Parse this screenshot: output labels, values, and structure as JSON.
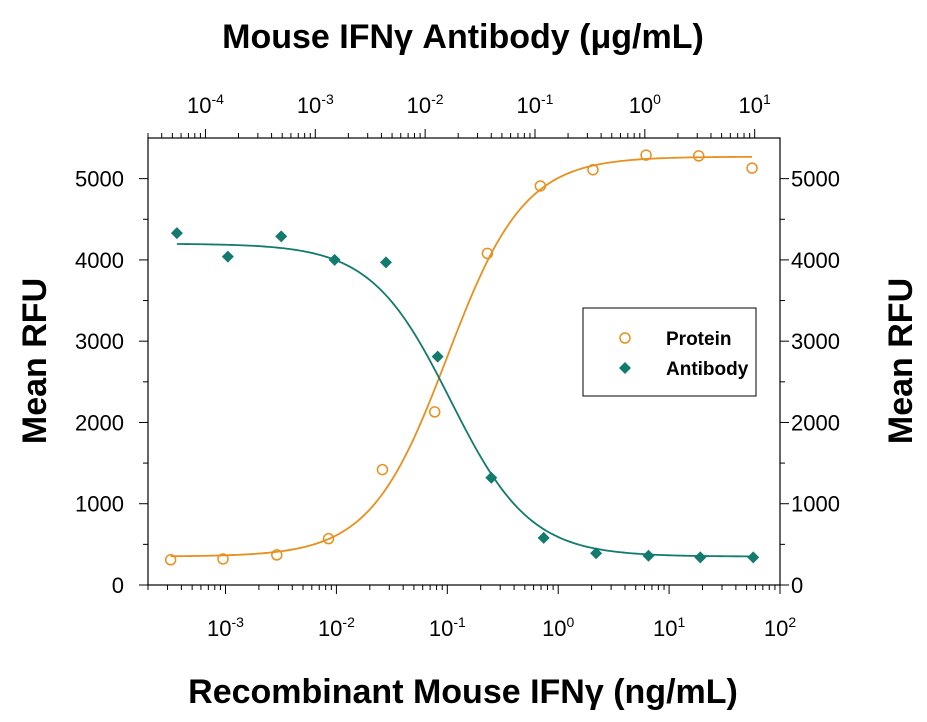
{
  "chart_data": {
    "type": "scatter",
    "title": "",
    "xlabel": "Recombinant Mouse IFNγ (ng/mL)",
    "x2label": "Mouse IFNγ Antibody (μg/mL)",
    "ylabel": "Mean RFU",
    "y2label": "Mean RFU",
    "xscale": "log",
    "x2scale": "log",
    "xlim": [
      0.0002,
      100
    ],
    "x2lim": [
      3e-05,
      17
    ],
    "ylim": [
      0,
      5500
    ],
    "x_ticks": [
      {
        "base": "10",
        "exp": "-3",
        "value": 0.001
      },
      {
        "base": "10",
        "exp": "-2",
        "value": 0.01
      },
      {
        "base": "10",
        "exp": "-1",
        "value": 0.1
      },
      {
        "base": "10",
        "exp": "0",
        "value": 1
      },
      {
        "base": "10",
        "exp": "1",
        "value": 10
      },
      {
        "base": "10",
        "exp": "2",
        "value": 100
      }
    ],
    "x2_ticks": [
      {
        "base": "10",
        "exp": "-4",
        "value": 0.0001
      },
      {
        "base": "10",
        "exp": "-3",
        "value": 0.001
      },
      {
        "base": "10",
        "exp": "-2",
        "value": 0.01
      },
      {
        "base": "10",
        "exp": "-1",
        "value": 0.1
      },
      {
        "base": "10",
        "exp": "0",
        "value": 1
      },
      {
        "base": "10",
        "exp": "1",
        "value": 10
      }
    ],
    "y_ticks": [
      "0",
      "1000",
      "2000",
      "3000",
      "4000",
      "5000"
    ],
    "y_tick_values": [
      0,
      1000,
      2000,
      3000,
      4000,
      5000
    ],
    "grid": false,
    "legend_position": "right",
    "series": [
      {
        "name": "Protein",
        "axis": "bottom",
        "marker": "open-circle",
        "color": "#E8901E",
        "x": [
          0.00032,
          0.00095,
          0.0029,
          0.0085,
          0.026,
          0.077,
          0.23,
          0.69,
          2.06,
          6.2,
          18.5,
          56
        ],
        "y": [
          310,
          320,
          370,
          570,
          1420,
          2130,
          4080,
          4910,
          5110,
          5290,
          5280,
          5130
        ],
        "fit": {
          "bottom": 350,
          "top": 5270,
          "ec50": 0.1,
          "hill": 1.25
        }
      },
      {
        "name": "Antibody",
        "axis": "top",
        "marker": "filled-diamond",
        "color": "#127A6E",
        "x": [
          5.5e-05,
          0.00016,
          0.00049,
          0.0015,
          0.0044,
          0.013,
          0.04,
          0.12,
          0.36,
          1.08,
          3.2,
          9.7
        ],
        "y": [
          4330,
          4040,
          4290,
          4000,
          3970,
          2810,
          1320,
          580,
          390,
          360,
          340,
          340
        ],
        "fit": {
          "bottom": 350,
          "top": 4200,
          "ec50": 0.017,
          "hill": 1.2
        }
      }
    ]
  }
}
